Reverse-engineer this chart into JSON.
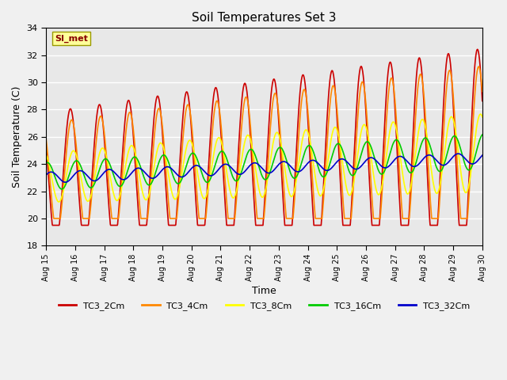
{
  "title": "Soil Temperatures Set 3",
  "xlabel": "Time",
  "ylabel": "Soil Temperature (C)",
  "ylim": [
    18,
    34
  ],
  "xlim": [
    0,
    360
  ],
  "series": {
    "TC3_2Cm": {
      "color": "#cc0000",
      "lw": 1.2
    },
    "TC3_4Cm": {
      "color": "#ff8800",
      "lw": 1.2
    },
    "TC3_8Cm": {
      "color": "#ffff00",
      "lw": 1.2
    },
    "TC3_16Cm": {
      "color": "#00cc00",
      "lw": 1.2
    },
    "TC3_32Cm": {
      "color": "#0000cc",
      "lw": 1.2
    }
  },
  "xtick_labels": [
    "Aug 15",
    "Aug 16",
    "Aug 17",
    "Aug 18",
    "Aug 19",
    "Aug 20",
    "Aug 21",
    "Aug 22",
    "Aug 23",
    "Aug 24",
    "Aug 25",
    "Aug 26",
    "Aug 27",
    "Aug 28",
    "Aug 29",
    "Aug 30"
  ],
  "xtick_positions": [
    0,
    24,
    48,
    72,
    96,
    120,
    144,
    168,
    192,
    216,
    240,
    264,
    288,
    312,
    336,
    360
  ],
  "ytick_labels": [
    "18",
    "20",
    "22",
    "24",
    "26",
    "28",
    "30",
    "32",
    "34"
  ],
  "ytick_positions": [
    18,
    20,
    22,
    24,
    26,
    28,
    30,
    32,
    34
  ],
  "bg_color": "#e8e8e8",
  "fig_bg_color": "#f0f0f0",
  "annotation_text": "SI_met",
  "grid_color": "#ffffff",
  "n_points": 1441,
  "legend_entries": [
    "TC3_2Cm",
    "TC3_4Cm",
    "TC3_8Cm",
    "TC3_16Cm",
    "TC3_32Cm"
  ]
}
